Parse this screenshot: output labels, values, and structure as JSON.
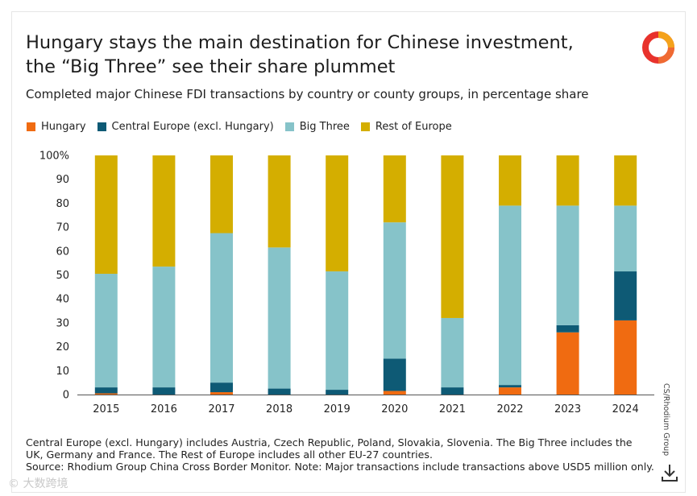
{
  "title": "Hungary stays the main destination for Chinese investment, the “Big Three” see their share plummet",
  "subtitle": "Completed major Chinese FDI transactions by country or county groups, in percentage share",
  "notes": {
    "line1": "Central Europe (excl. Hungary) includes Austria, Czech Republic, Poland, Slovakia, Slovenia. The Big Three includes the",
    "line2": "UK, Germany and France. The Rest of Europe includes all other EU-27 countries.",
    "line3": "Source: Rhodium Group China Cross Border Monitor. Note: Major transactions include transactions above USD5 million only."
  },
  "credit": "CS/Rhodium Group",
  "watermark": "© 大数跨境",
  "icons": {
    "logo": "rhodium-logo-icon",
    "download": "download-icon"
  },
  "colors": {
    "Hungary": "#f06b11",
    "Central Europe (excl. Hungary)": "#0e5a75",
    "Big Three": "#86c3c9",
    "Rest of Europe": "#d4ae00"
  },
  "chart_data": {
    "type": "bar",
    "stacked": true,
    "categories": [
      "2015",
      "2016",
      "2017",
      "2018",
      "2019",
      "2020",
      "2021",
      "2022",
      "2023",
      "2024"
    ],
    "series": [
      {
        "name": "Hungary",
        "values": [
          0.5,
          0,
          1,
          0,
          0,
          1.5,
          0,
          3,
          26,
          31
        ]
      },
      {
        "name": "Central Europe (excl. Hungary)",
        "values": [
          2.5,
          3,
          4,
          2.5,
          2,
          13.5,
          3,
          1,
          3,
          20.5
        ]
      },
      {
        "name": "Big Three",
        "values": [
          47.5,
          50.5,
          62.5,
          59,
          49.5,
          57,
          29,
          75,
          50,
          27.5
        ]
      },
      {
        "name": "Rest of Europe",
        "values": [
          49.5,
          46.5,
          32.5,
          38.5,
          48.5,
          28,
          68,
          21,
          21,
          21
        ]
      }
    ],
    "ylim": [
      0,
      100
    ],
    "yticks": [
      "0",
      "10",
      "20",
      "30",
      "40",
      "50",
      "60",
      "70",
      "80",
      "90",
      "100%"
    ],
    "title": "Hungary stays the main destination for Chinese investment, the “Big Three” see their share plummet",
    "xlabel": "",
    "ylabel": "",
    "legend_position": "top-left"
  }
}
